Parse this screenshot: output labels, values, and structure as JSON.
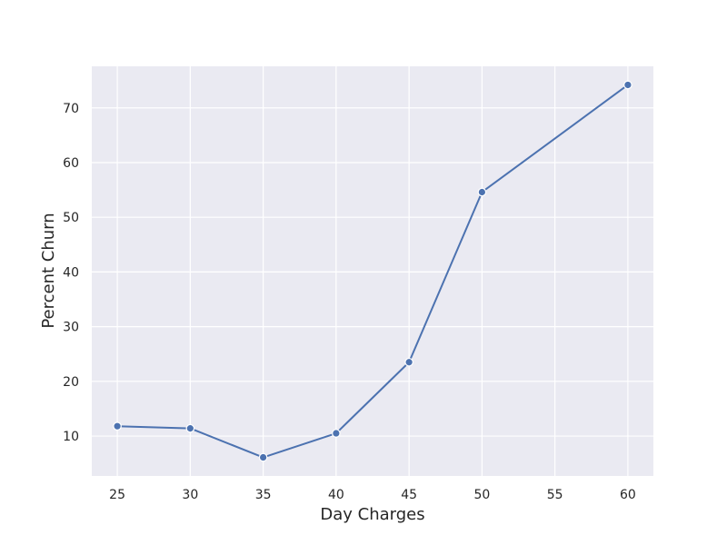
{
  "chart_data": {
    "type": "line",
    "title": "",
    "xlabel": "Day Charges",
    "ylabel": "Percent Churn",
    "x": [
      25,
      30,
      35,
      40,
      45,
      50,
      60
    ],
    "series": [
      {
        "values": [
          11.8,
          11.4,
          6.1,
          10.5,
          23.5,
          54.6,
          74.2
        ]
      }
    ],
    "xticks": [
      25,
      30,
      35,
      40,
      45,
      50,
      55,
      60
    ],
    "yticks": [
      10,
      20,
      30,
      40,
      50,
      60,
      70
    ],
    "xlim": [
      23.25,
      61.75
    ],
    "ylim": [
      2.7,
      77.6
    ],
    "grid": true,
    "colors": {
      "line": "#4c72b0",
      "panel_background": "#eaeaf2",
      "grid": "#ffffff"
    }
  }
}
